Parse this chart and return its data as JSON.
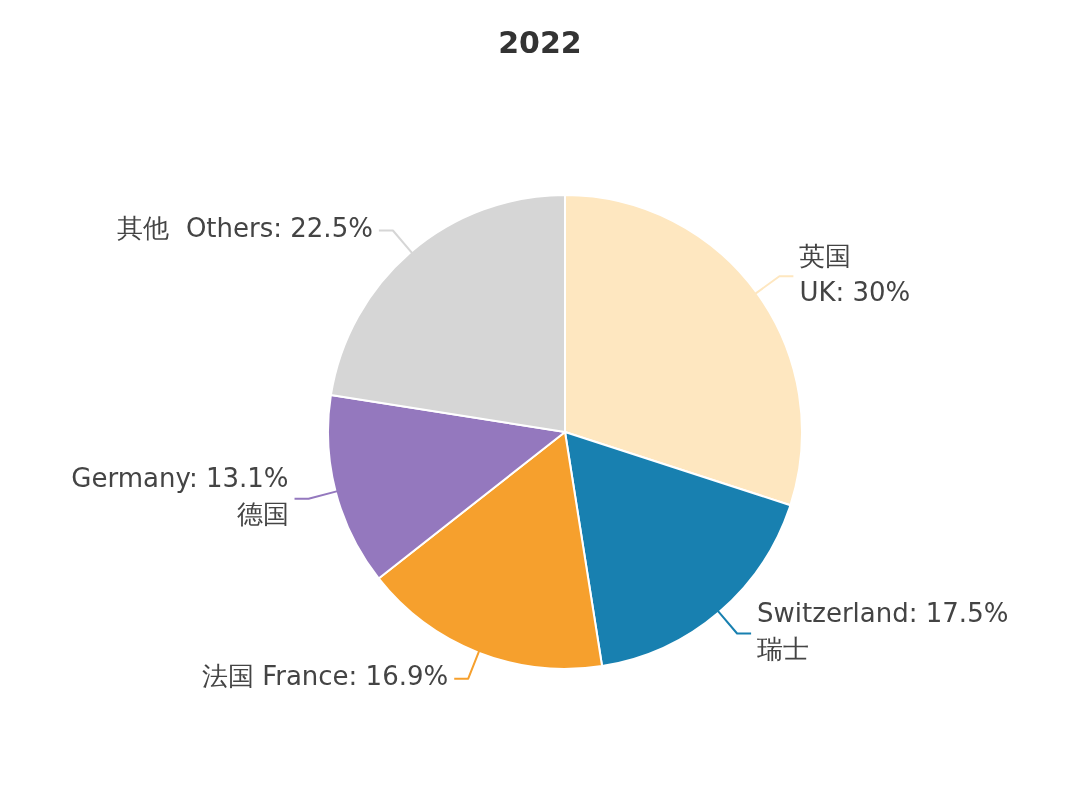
{
  "chart_data": {
    "type": "pie",
    "title": "2022",
    "categories": [
      "英国\nUK: 30%",
      "Switzerland: 17.5%\n瑞士",
      "法国 France: 16.9%",
      "Germany: 13.1%\n德国",
      "其他  Others: 22.5%"
    ],
    "values": [
      30,
      17.5,
      16.9,
      13.1,
      22.5
    ],
    "colors": [
      "#fee7c0",
      "#1880b0",
      "#f6a02d",
      "#9478be",
      "#d6d6d6"
    ],
    "legend": false
  }
}
